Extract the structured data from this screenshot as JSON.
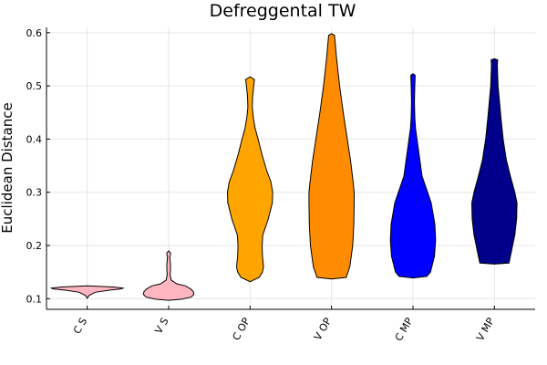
{
  "chart_data": {
    "type": "violin",
    "title": "Defreggental TW",
    "xlabel": "",
    "ylabel": "Euclidean Distance",
    "ylim": [
      0.08,
      0.61
    ],
    "yticks": [
      0.1,
      0.2,
      0.3,
      0.4,
      0.5,
      0.6
    ],
    "ytick_labels": [
      "0.1",
      "0.2",
      "0.3",
      "0.4",
      "0.5",
      "0.6"
    ],
    "grid": true,
    "legend": "none",
    "categories": [
      "C S",
      "V S",
      "C OP",
      "V OP",
      "C MP",
      "V MP"
    ],
    "series": [
      {
        "category": "C S",
        "color": "#ffb6c1",
        "profile": [
          [
            0.101,
            0.0
          ],
          [
            0.106,
            0.05
          ],
          [
            0.112,
            0.22
          ],
          [
            0.116,
            0.6
          ],
          [
            0.118,
            0.9
          ],
          [
            0.12,
            1.0
          ],
          [
            0.122,
            0.7
          ],
          [
            0.124,
            0.0
          ]
        ]
      },
      {
        "category": "V S",
        "color": "#ffb6c1",
        "profile": [
          [
            0.097,
            0.0
          ],
          [
            0.099,
            0.36
          ],
          [
            0.103,
            0.62
          ],
          [
            0.108,
            0.69
          ],
          [
            0.113,
            0.68
          ],
          [
            0.118,
            0.61
          ],
          [
            0.124,
            0.46
          ],
          [
            0.128,
            0.22
          ],
          [
            0.135,
            0.07
          ],
          [
            0.145,
            0.04
          ],
          [
            0.155,
            0.05
          ],
          [
            0.165,
            0.05
          ],
          [
            0.172,
            0.04
          ],
          [
            0.178,
            0.03
          ],
          [
            0.183,
            0.05
          ],
          [
            0.186,
            0.05
          ],
          [
            0.19,
            0.0
          ]
        ]
      },
      {
        "category": "C OP",
        "color": "#ffa500",
        "profile": [
          [
            0.132,
            0.0
          ],
          [
            0.14,
            0.25
          ],
          [
            0.15,
            0.34
          ],
          [
            0.16,
            0.37
          ],
          [
            0.18,
            0.34
          ],
          [
            0.2,
            0.33
          ],
          [
            0.22,
            0.35
          ],
          [
            0.25,
            0.5
          ],
          [
            0.28,
            0.61
          ],
          [
            0.3,
            0.62
          ],
          [
            0.32,
            0.57
          ],
          [
            0.34,
            0.46
          ],
          [
            0.37,
            0.33
          ],
          [
            0.4,
            0.22
          ],
          [
            0.42,
            0.14
          ],
          [
            0.44,
            0.09
          ],
          [
            0.46,
            0.06
          ],
          [
            0.48,
            0.07
          ],
          [
            0.5,
            0.1
          ],
          [
            0.512,
            0.12
          ],
          [
            0.517,
            0.0
          ]
        ]
      },
      {
        "category": "V OP",
        "color": "#ff8c00",
        "profile": [
          [
            0.137,
            0.0
          ],
          [
            0.14,
            0.4
          ],
          [
            0.16,
            0.5
          ],
          [
            0.2,
            0.58
          ],
          [
            0.24,
            0.61
          ],
          [
            0.28,
            0.62
          ],
          [
            0.3,
            0.62
          ],
          [
            0.32,
            0.59
          ],
          [
            0.36,
            0.52
          ],
          [
            0.4,
            0.43
          ],
          [
            0.45,
            0.32
          ],
          [
            0.5,
            0.22
          ],
          [
            0.55,
            0.14
          ],
          [
            0.58,
            0.1
          ],
          [
            0.595,
            0.08
          ],
          [
            0.598,
            0.0
          ]
        ]
      },
      {
        "category": "C MP",
        "color": "#0000ff",
        "profile": [
          [
            0.139,
            0.0
          ],
          [
            0.142,
            0.38
          ],
          [
            0.15,
            0.48
          ],
          [
            0.18,
            0.59
          ],
          [
            0.21,
            0.62
          ],
          [
            0.24,
            0.6
          ],
          [
            0.28,
            0.5
          ],
          [
            0.3,
            0.4
          ],
          [
            0.33,
            0.25
          ],
          [
            0.36,
            0.19
          ],
          [
            0.39,
            0.13
          ],
          [
            0.42,
            0.07
          ],
          [
            0.44,
            0.05
          ],
          [
            0.47,
            0.04
          ],
          [
            0.5,
            0.05
          ],
          [
            0.52,
            0.06
          ],
          [
            0.523,
            0.0
          ]
        ]
      },
      {
        "category": "V MP",
        "color": "#00008b",
        "profile": [
          [
            0.165,
            0.0
          ],
          [
            0.167,
            0.4
          ],
          [
            0.19,
            0.47
          ],
          [
            0.22,
            0.56
          ],
          [
            0.25,
            0.61
          ],
          [
            0.28,
            0.62
          ],
          [
            0.3,
            0.56
          ],
          [
            0.33,
            0.44
          ],
          [
            0.36,
            0.33
          ],
          [
            0.4,
            0.24
          ],
          [
            0.44,
            0.18
          ],
          [
            0.47,
            0.14
          ],
          [
            0.5,
            0.1
          ],
          [
            0.52,
            0.09
          ],
          [
            0.54,
            0.08
          ],
          [
            0.549,
            0.09
          ],
          [
            0.551,
            0.0
          ]
        ]
      }
    ]
  }
}
